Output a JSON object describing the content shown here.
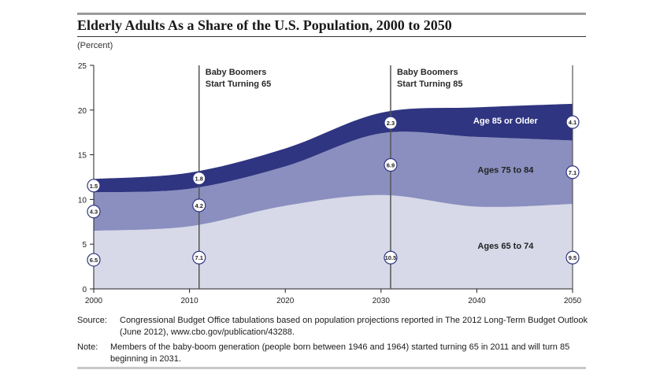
{
  "header": {
    "title": "Elderly Adults As a Share of the U.S. Population, 2000 to 2050",
    "unit_label": "(Percent)"
  },
  "chart_data": {
    "type": "area",
    "stacked": true,
    "x": [
      2000,
      2010,
      2020,
      2030,
      2040,
      2050
    ],
    "x_ticks": [
      "2000",
      "2010",
      "2020",
      "2030",
      "2040",
      "2050"
    ],
    "xlim": [
      2000,
      2050
    ],
    "ylim": [
      0,
      25
    ],
    "y_ticks": [
      "0",
      "5",
      "10",
      "15",
      "20",
      "25"
    ],
    "grid": false,
    "colors": {
      "ages_65_74": "#d7d9e8",
      "ages_75_84": "#8a8fbf",
      "ages_85_older": "#2f3580"
    },
    "series": [
      {
        "name": "Ages 65 to 74",
        "key": "ages_65_74",
        "values": [
          6.5,
          7.0,
          9.3,
          10.5,
          9.2,
          9.5
        ]
      },
      {
        "name": "Ages 75 to 84",
        "key": "ages_75_84",
        "values": [
          4.3,
          4.2,
          4.4,
          6.9,
          7.8,
          7.1
        ]
      },
      {
        "name": "Age 85 or Older",
        "key": "ages_85_older",
        "values": [
          1.5,
          1.8,
          2.0,
          2.3,
          3.3,
          4.1
        ]
      }
    ],
    "data_labels": [
      {
        "x": 2000,
        "series": "ages_65_74",
        "text": "6.5"
      },
      {
        "x": 2000,
        "series": "ages_75_84",
        "text": "4.3"
      },
      {
        "x": 2000,
        "series": "ages_85_older",
        "text": "1.5"
      },
      {
        "x": 2011,
        "series": "ages_65_74",
        "text": "7.1"
      },
      {
        "x": 2011,
        "series": "ages_75_84",
        "text": "4.2"
      },
      {
        "x": 2011,
        "series": "ages_85_older",
        "text": "1.8"
      },
      {
        "x": 2031,
        "series": "ages_65_74",
        "text": "10.5"
      },
      {
        "x": 2031,
        "series": "ages_75_84",
        "text": "6.9"
      },
      {
        "x": 2031,
        "series": "ages_85_older",
        "text": "2.3"
      },
      {
        "x": 2050,
        "series": "ages_65_74",
        "text": "9.5"
      },
      {
        "x": 2050,
        "series": "ages_75_84",
        "text": "7.1"
      },
      {
        "x": 2050,
        "series": "ages_85_older",
        "text": "4.1"
      }
    ],
    "annotations": [
      {
        "x": 2011,
        "lines": [
          "Baby Boomers",
          "Start Turning 65"
        ]
      },
      {
        "x": 2031,
        "lines": [
          "Baby Boomers",
          "Start Turning 85"
        ]
      }
    ]
  },
  "notes": {
    "source_label": "Source:",
    "source_text": "Congressional Budget Office tabulations based on population projections reported in The 2012 Long-Term Budget Outlook (June 2012), www.cbo.gov/publication/43288.",
    "note_label": "Note:",
    "note_text": "Members of the baby-boom generation (people born between 1946 and 1964) started turning 65 in 2011 and will turn 85 beginning in 2031."
  }
}
